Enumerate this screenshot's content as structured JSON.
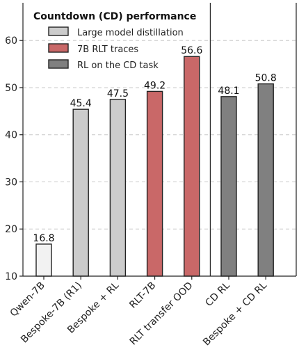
{
  "chart_data": {
    "type": "bar",
    "title": "Countdown (CD) performance",
    "xlabel": "",
    "ylabel": "",
    "ylim": [
      10,
      68
    ],
    "yticks": [
      10,
      20,
      30,
      40,
      50,
      60
    ],
    "grid": true,
    "legend_position": "top-left",
    "categories": [
      "Qwen-7B",
      "Bespoke-7B (R1)",
      "Bespoke + RL",
      "RLT-7B",
      "RLT transfer OOD",
      "CD RL",
      "Bespoke + CD RL"
    ],
    "values": [
      16.8,
      45.4,
      47.5,
      49.2,
      56.6,
      48.1,
      50.8
    ],
    "value_labels": [
      "16.8",
      "45.4",
      "47.5",
      "49.2",
      "56.6",
      "48.1",
      "50.8"
    ],
    "groups": [
      "baseline",
      "distill",
      "distill",
      "rlt",
      "rlt",
      "cdrl",
      "cdrl"
    ],
    "separator_after_index": 4,
    "legend": [
      {
        "label": "Large model distillation",
        "group": "distill"
      },
      {
        "label": "7B RLT traces",
        "group": "rlt"
      },
      {
        "label": "RL on the CD task",
        "group": "cdrl"
      }
    ],
    "colors": {
      "baseline": "#f2f2f2",
      "distill": "#cccccc",
      "rlt": "#c96868",
      "cdrl": "#808080"
    }
  }
}
